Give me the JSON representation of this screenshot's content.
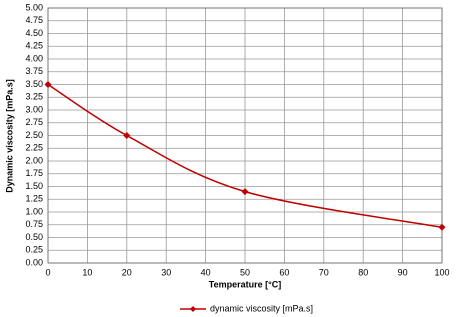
{
  "chart_data": {
    "type": "line",
    "x_label": "Temperature [°C]",
    "y_label": "Dynamic viscosity [mPa.s]",
    "x": [
      0,
      20,
      50,
      100
    ],
    "series": [
      {
        "name": "dynamic viscosity [mPa.s]",
        "color": "#c00000",
        "values": [
          3.5,
          2.5,
          1.4,
          0.7
        ]
      }
    ],
    "xlim": [
      0,
      100
    ],
    "xticks": [
      0,
      10,
      20,
      30,
      40,
      50,
      60,
      70,
      80,
      90,
      100
    ],
    "ylim": [
      0,
      5
    ],
    "yticks": [
      {
        "value": 0,
        "label": "0.00"
      },
      {
        "value": 0.25,
        "label": "0.25"
      },
      {
        "value": 0.5,
        "label": "0.50"
      },
      {
        "value": 0.75,
        "label": "0.75"
      },
      {
        "value": 1,
        "label": "1.00"
      },
      {
        "value": 1.25,
        "label": "1.25"
      },
      {
        "value": 1.5,
        "label": "1.50"
      },
      {
        "value": 1.75,
        "label": "1.75"
      },
      {
        "value": 2,
        "label": "2.00"
      },
      {
        "value": 2.25,
        "label": "2.25"
      },
      {
        "value": 2.5,
        "label": "2.50"
      },
      {
        "value": 2.75,
        "label": "2.75"
      },
      {
        "value": 3,
        "label": "3.00"
      },
      {
        "value": 3.25,
        "label": "3.25"
      },
      {
        "value": 3.5,
        "label": "3.50"
      },
      {
        "value": 3.75,
        "label": "3.75"
      },
      {
        "value": 4,
        "label": "4.00"
      },
      {
        "value": 4.25,
        "label": "4.25"
      },
      {
        "value": 4.5,
        "label": "4.50"
      },
      {
        "value": 4.75,
        "label": "4.75"
      },
      {
        "value": 5,
        "label": "5.00"
      }
    ],
    "grid": true,
    "smooth": true,
    "legend": "bottom"
  }
}
